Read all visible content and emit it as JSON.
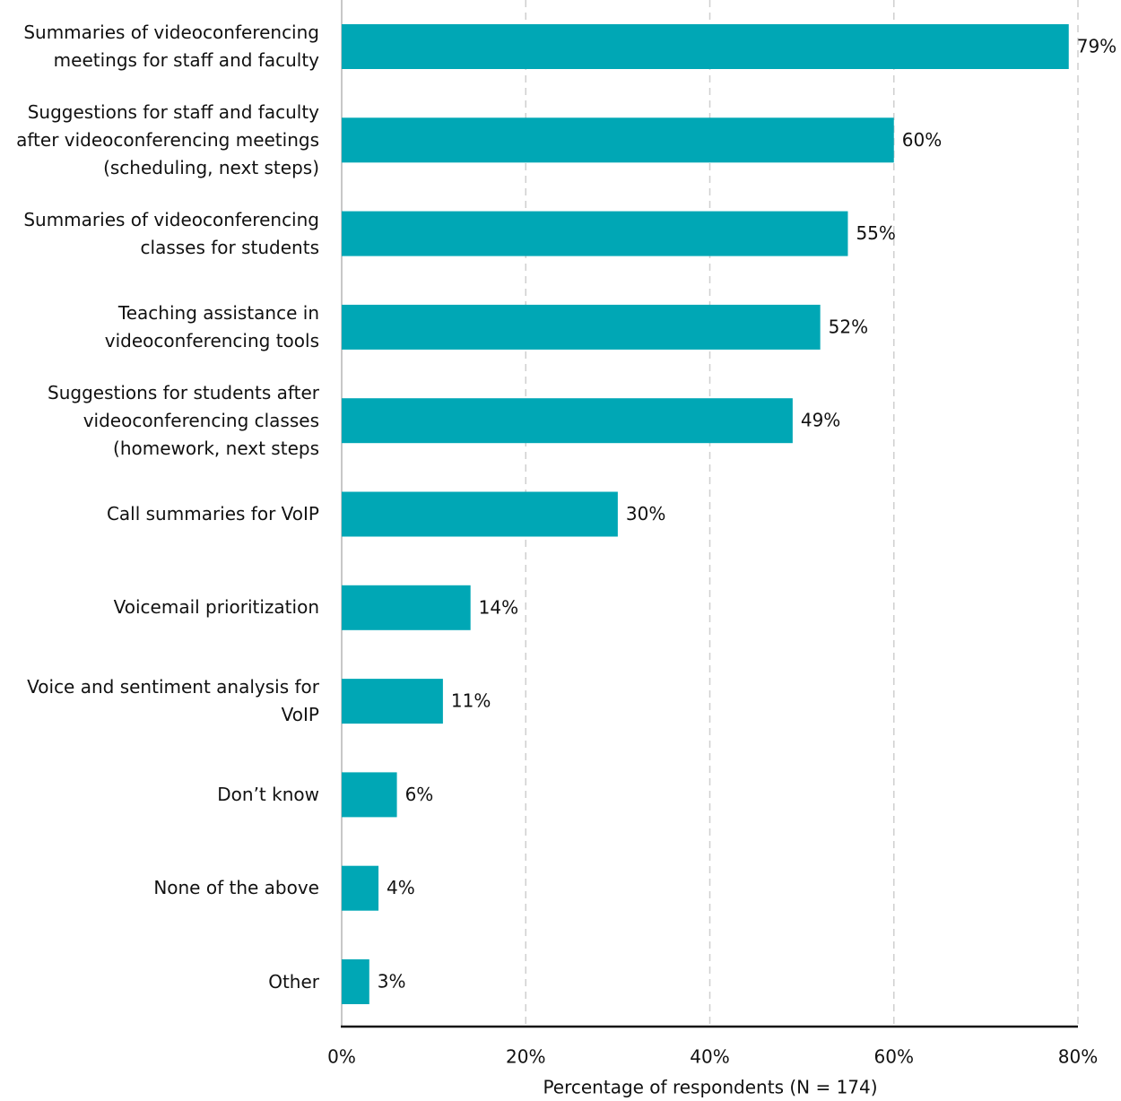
{
  "chart_data": {
    "type": "hbar",
    "categories": [
      "Summaries of videoconferencing meetings for staff and faculty",
      "Suggestions for staff and faculty after videoconferencing meetings (scheduling, next steps)",
      "Summaries of videoconferencing classes for students",
      "Teaching assistance in videoconferencing tools",
      "Suggestions for students after videoconferencing classes (homework, next steps",
      "Call summaries for VoIP",
      "Voicemail prioritization",
      "Voice and sentiment analysis for VoIP",
      "Don’t know",
      "None of the above",
      "Other"
    ],
    "values": [
      79,
      60,
      55,
      52,
      49,
      30,
      14,
      11,
      6,
      4,
      3
    ],
    "value_labels": [
      "79%",
      "60%",
      "55%",
      "52%",
      "49%",
      "30%",
      "14%",
      "11%",
      "6%",
      "4%",
      "3%"
    ],
    "color": "#00a7b5",
    "xlabel": "Percentage of respondents (N = 174)",
    "xlim": [
      0,
      80
    ],
    "xticks": [
      {
        "value": 0,
        "label": "0%"
      },
      {
        "value": 20,
        "label": "20%"
      },
      {
        "value": 40,
        "label": "40%"
      },
      {
        "value": 60,
        "label": "60%"
      },
      {
        "value": 80,
        "label": "80%"
      }
    ],
    "grid": true
  }
}
